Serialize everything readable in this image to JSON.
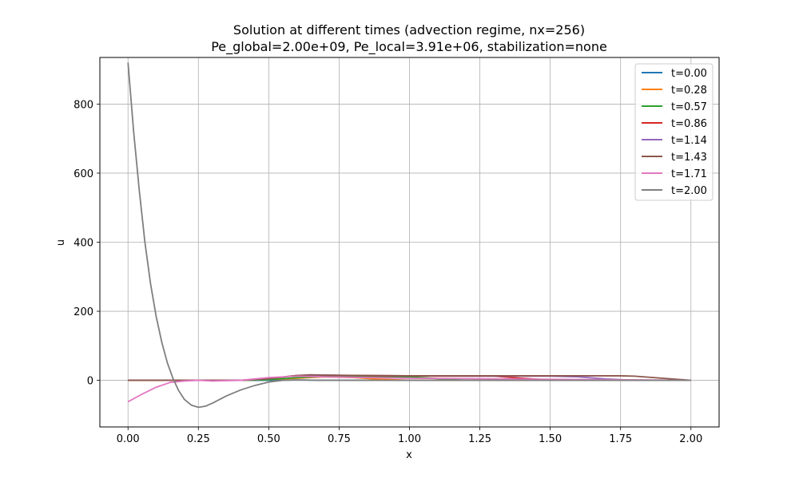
{
  "chart_data": {
    "type": "line",
    "title_line1": "Solution at different times (advection regime, nx=256)",
    "title_line2": "Pe_global=2.00e+09, Pe_local=3.91e+06, stabilization=none",
    "xlabel": "x",
    "ylabel": "u",
    "xlim": [
      -0.1,
      2.1
    ],
    "ylim": [
      -135,
      935
    ],
    "xticks": [
      0.0,
      0.25,
      0.5,
      0.75,
      1.0,
      1.25,
      1.5,
      1.75,
      2.0
    ],
    "xtick_labels": [
      "0.00",
      "0.25",
      "0.50",
      "0.75",
      "1.00",
      "1.25",
      "1.50",
      "1.75",
      "2.00"
    ],
    "yticks": [
      0,
      200,
      400,
      600,
      800
    ],
    "ytick_labels": [
      "0",
      "200",
      "400",
      "600",
      "800"
    ],
    "grid": true,
    "legend_position": "top-right",
    "series": [
      {
        "name": "t=0.00",
        "color": "#1f77b4",
        "x": [
          0.0,
          0.1,
          0.2,
          0.3,
          0.4,
          0.5,
          0.55,
          0.6,
          0.65,
          0.7,
          0.8,
          1.0,
          1.5,
          2.0
        ],
        "y": [
          0,
          0,
          0,
          0,
          0,
          0,
          0.5,
          1,
          0.5,
          0,
          0,
          0,
          0,
          0
        ]
      },
      {
        "name": "t=0.28",
        "color": "#ff7f0e",
        "x": [
          0.0,
          0.2,
          0.4,
          0.5,
          0.6,
          0.7,
          0.8,
          0.9,
          1.0,
          1.2,
          1.5,
          2.0
        ],
        "y": [
          0,
          0,
          0,
          2,
          6,
          10,
          8,
          3,
          0,
          0,
          0,
          0
        ]
      },
      {
        "name": "t=0.57",
        "color": "#2ca02c",
        "x": [
          0.0,
          0.2,
          0.4,
          0.5,
          0.6,
          0.7,
          0.8,
          1.0,
          1.1,
          1.2,
          1.5,
          2.0
        ],
        "y": [
          0,
          0,
          0,
          2,
          8,
          11,
          11,
          10,
          5,
          0,
          0,
          0
        ]
      },
      {
        "name": "t=0.86",
        "color": "#d62728",
        "x": [
          0.0,
          0.2,
          0.4,
          0.5,
          0.6,
          0.7,
          0.9,
          1.1,
          1.3,
          1.4,
          1.5,
          1.6,
          2.0
        ],
        "y": [
          0,
          0,
          0,
          5,
          14,
          15,
          13,
          12,
          12,
          6,
          1,
          0,
          0
        ]
      },
      {
        "name": "t=1.14",
        "color": "#9467bd",
        "x": [
          0.0,
          0.2,
          0.4,
          0.5,
          0.6,
          0.7,
          1.0,
          1.3,
          1.5,
          1.6,
          1.7,
          1.8,
          2.0
        ],
        "y": [
          0,
          0,
          0,
          5,
          14,
          15,
          13,
          12,
          12,
          10,
          4,
          0,
          0
        ]
      },
      {
        "name": "t=1.43",
        "color": "#8c564b",
        "x": [
          0.0,
          0.2,
          0.4,
          0.5,
          0.6,
          0.65,
          0.7,
          1.0,
          1.3,
          1.6,
          1.75,
          1.8,
          1.9,
          2.0
        ],
        "y": [
          0,
          0,
          0,
          5,
          14,
          16,
          15,
          13,
          13,
          13,
          13,
          12,
          6,
          0
        ]
      },
      {
        "name": "t=1.71",
        "color": "#e377c2",
        "x": [
          0.0,
          0.05,
          0.1,
          0.15,
          0.2,
          0.25,
          0.3,
          0.4,
          0.5,
          0.6,
          0.7,
          1.0,
          1.5,
          2.0
        ],
        "y": [
          -62,
          -40,
          -20,
          -6,
          -2,
          0,
          -2,
          0,
          8,
          12,
          10,
          6,
          3,
          0
        ]
      },
      {
        "name": "t=2.00",
        "color": "#7f7f7f",
        "x": [
          0.0,
          0.02,
          0.04,
          0.06,
          0.08,
          0.1,
          0.12,
          0.14,
          0.16,
          0.18,
          0.2,
          0.225,
          0.25,
          0.275,
          0.3,
          0.35,
          0.4,
          0.45,
          0.5,
          0.55,
          0.6,
          0.7,
          1.0,
          1.5,
          2.0
        ],
        "y": [
          920,
          720,
          550,
          400,
          280,
          185,
          110,
          50,
          5,
          -30,
          -55,
          -72,
          -78,
          -75,
          -66,
          -45,
          -28,
          -15,
          -5,
          0,
          1,
          0,
          0,
          0,
          0
        ]
      }
    ]
  }
}
